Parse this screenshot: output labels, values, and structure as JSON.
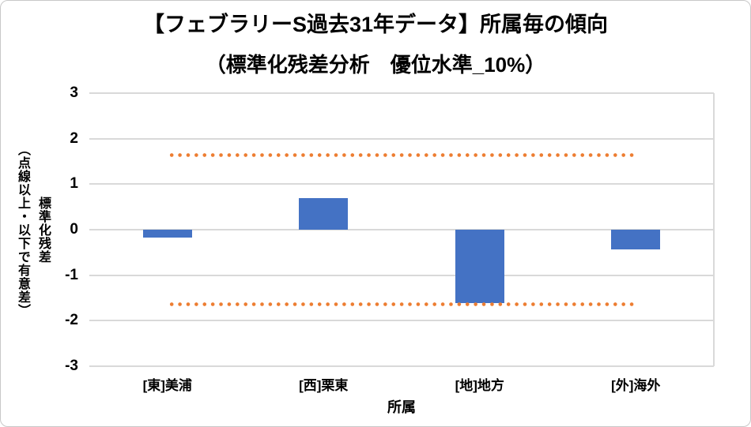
{
  "frame": {
    "background": "#FFFFFF",
    "border_color": "#C8C8C8"
  },
  "title": {
    "line1": "【フェブラリーS過去31年データ】所属毎の傾向",
    "line2": "（標準化残差分析　優位水準_10%）"
  },
  "y_axis": {
    "title_main": "標準化残差",
    "title_sub": "（点線以上・以下で有意差）",
    "ticks": [
      "3",
      "2",
      "1",
      "0",
      "-1",
      "-2",
      "-3"
    ]
  },
  "x_axis": {
    "title": "所属",
    "categories": [
      "[東]美浦",
      "[西]栗東",
      "[地]地方",
      "[外]海外"
    ]
  },
  "chart_data": {
    "type": "bar",
    "categories": [
      "[東]美浦",
      "[西]栗東",
      "[地]地方",
      "[外]海外"
    ],
    "values": [
      -0.17,
      0.7,
      -1.61,
      -0.43
    ],
    "title": "【フェブラリーS過去31年データ】所属毎の傾向（標準化残差分析　優位水準_10%）",
    "xlabel": "所属",
    "ylabel": "標準化残差（点線以上・以下で有意差）",
    "ylim": [
      -3,
      3
    ],
    "y_ticks": [
      3,
      2,
      1,
      0,
      -1,
      -2,
      -3
    ],
    "grid": true,
    "legend": "none",
    "threshold_lines": {
      "values": [
        1.645,
        -1.645
      ],
      "style": "dotted",
      "color": "#ED7D31",
      "span": "first_category_center_to_last_category_center"
    },
    "bar_color": "#4472C4",
    "gridline_color": "#D9D9D9"
  }
}
